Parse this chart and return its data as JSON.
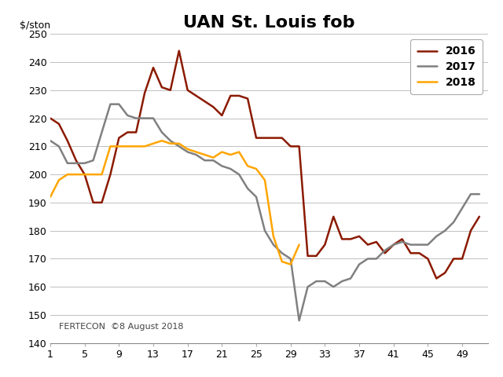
{
  "title": "UAN St. Louis fob",
  "ylabel_text": "$/ston",
  "xlim": [
    1,
    52
  ],
  "ylim": [
    140,
    250
  ],
  "yticks": [
    140,
    150,
    160,
    170,
    180,
    190,
    200,
    210,
    220,
    230,
    240,
    250
  ],
  "xticks": [
    1,
    5,
    9,
    13,
    17,
    21,
    25,
    29,
    33,
    37,
    41,
    45,
    49
  ],
  "background_color": "#ffffff",
  "grid_color": "#c0c0c0",
  "annotation": "FERTECON  ©8 August 2018",
  "series": [
    {
      "label": "2016",
      "color": "#8B1A00",
      "x": [
        1,
        2,
        3,
        4,
        5,
        6,
        7,
        8,
        9,
        10,
        11,
        12,
        13,
        14,
        15,
        16,
        17,
        18,
        19,
        20,
        21,
        22,
        23,
        24,
        25,
        26,
        27,
        28,
        29,
        30,
        31,
        32,
        33,
        34,
        35,
        36,
        37,
        38,
        39,
        40,
        41,
        42,
        43,
        44,
        45,
        46,
        47,
        48,
        49,
        50,
        51
      ],
      "y": [
        220,
        218,
        212,
        205,
        200,
        190,
        190,
        200,
        213,
        215,
        215,
        229,
        238,
        231,
        230,
        244,
        230,
        228,
        226,
        224,
        221,
        228,
        228,
        227,
        213,
        213,
        213,
        213,
        210,
        210,
        171,
        171,
        175,
        185,
        177,
        177,
        178,
        175,
        176,
        172,
        175,
        177,
        172,
        172,
        170,
        163,
        165,
        170,
        170,
        180,
        185
      ]
    },
    {
      "label": "2017",
      "color": "#808080",
      "x": [
        1,
        2,
        3,
        4,
        5,
        6,
        7,
        8,
        9,
        10,
        11,
        12,
        13,
        14,
        15,
        16,
        17,
        18,
        19,
        20,
        21,
        22,
        23,
        24,
        25,
        26,
        27,
        28,
        29,
        30,
        31,
        32,
        33,
        34,
        35,
        36,
        37,
        38,
        39,
        40,
        41,
        42,
        43,
        44,
        45,
        46,
        47,
        48,
        49,
        50,
        51
      ],
      "y": [
        212,
        210,
        204,
        204,
        204,
        205,
        215,
        225,
        225,
        221,
        220,
        220,
        220,
        215,
        212,
        210,
        208,
        207,
        205,
        205,
        203,
        202,
        200,
        195,
        192,
        180,
        175,
        172,
        170,
        148,
        160,
        162,
        162,
        160,
        162,
        163,
        168,
        170,
        170,
        173,
        175,
        176,
        175,
        175,
        175,
        178,
        180,
        183,
        188,
        193,
        193
      ]
    },
    {
      "label": "2018",
      "color": "#FFA500",
      "x": [
        1,
        2,
        3,
        4,
        5,
        6,
        7,
        8,
        9,
        10,
        11,
        12,
        13,
        14,
        15,
        16,
        17,
        18,
        19,
        20,
        21,
        22,
        23,
        24,
        25,
        26,
        27,
        28,
        29,
        30
      ],
      "y": [
        192,
        198,
        200,
        200,
        200,
        200,
        200,
        210,
        210,
        210,
        210,
        210,
        211,
        212,
        211,
        211,
        209,
        208,
        207,
        206,
        208,
        207,
        208,
        203,
        202,
        198,
        178,
        169,
        168,
        175
      ]
    }
  ],
  "figsize": [
    6.4,
    4.8
  ],
  "dpi": 100,
  "title_fontsize": 16,
  "tick_fontsize": 9,
  "line_width": 1.8,
  "legend_fontsize": 10,
  "annotation_fontsize": 8
}
